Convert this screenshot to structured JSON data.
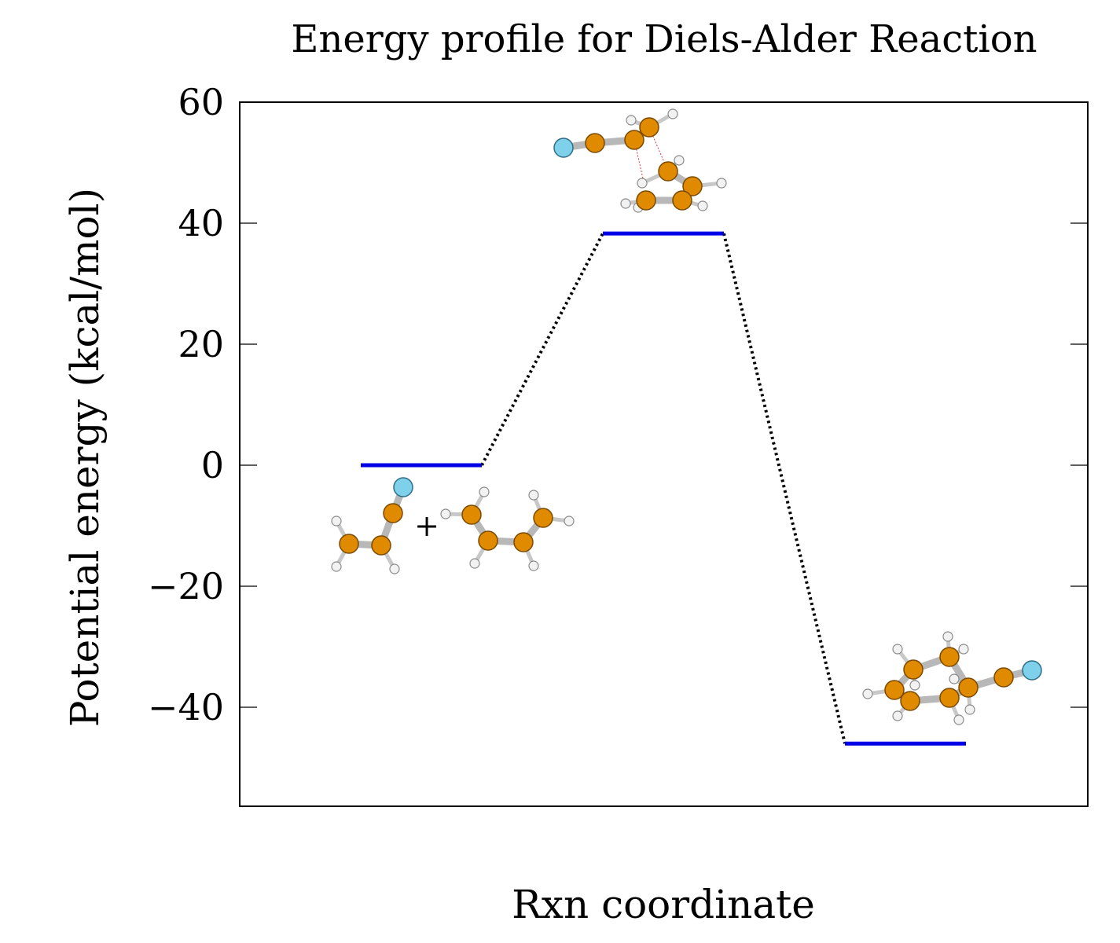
{
  "chart_data": {
    "type": "line",
    "title": "Energy profile for Diels-Alder Reaction",
    "xlabel": "Rxn coordinate",
    "ylabel": "Potential energy (kcal/mol)",
    "ylim": [
      -56,
      60
    ],
    "yticks": [
      60,
      40,
      20,
      0,
      -20,
      -40
    ],
    "ytick_labels": [
      "60",
      "40",
      "20",
      "0",
      "−20",
      "−40"
    ],
    "levels": [
      {
        "x_start": 1,
        "x_end": 2,
        "energy": 0
      },
      {
        "x_start": 3,
        "x_end": 4,
        "energy": 38.3
      },
      {
        "x_start": 5,
        "x_end": 6,
        "energy": -46
      }
    ],
    "xlim": [
      0,
      7
    ],
    "level_color": "#0000e6",
    "connector_style": "dotted",
    "grid": false,
    "plus_sign": "+",
    "structure_icons": [
      "reactants-molecules-icon",
      "transition-state-molecule-icon",
      "product-molecule-icon"
    ]
  }
}
